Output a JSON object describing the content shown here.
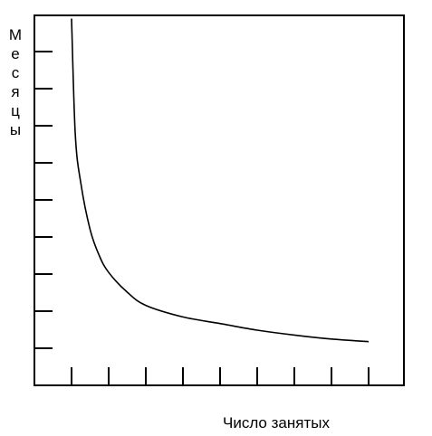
{
  "chart_data": {
    "type": "line",
    "title": "",
    "xlabel": "Число занятых",
    "ylabel": "Месяцы",
    "ylabel_letters": [
      "М",
      "е",
      "с",
      "я",
      "ц",
      "ы"
    ],
    "x_ticks": 9,
    "y_ticks": 9,
    "xlim": [
      0,
      9.5
    ],
    "ylim": [
      0,
      10
    ],
    "grid": false,
    "tick_labels_shown": false,
    "series": [
      {
        "values_description": "decreasing hyperbolic curve",
        "x": [
          1.0,
          1.1,
          1.25,
          1.5,
          1.75,
          2.0,
          2.5,
          3.0,
          4.0,
          5.0,
          6.0,
          7.0,
          8.0,
          9.0
        ],
        "y": [
          10.0,
          6.5,
          5.0,
          3.6,
          2.8,
          2.3,
          1.7,
          1.3,
          0.95,
          0.75,
          0.55,
          0.4,
          0.28,
          0.2
        ],
        "color": "#000000"
      }
    ]
  }
}
